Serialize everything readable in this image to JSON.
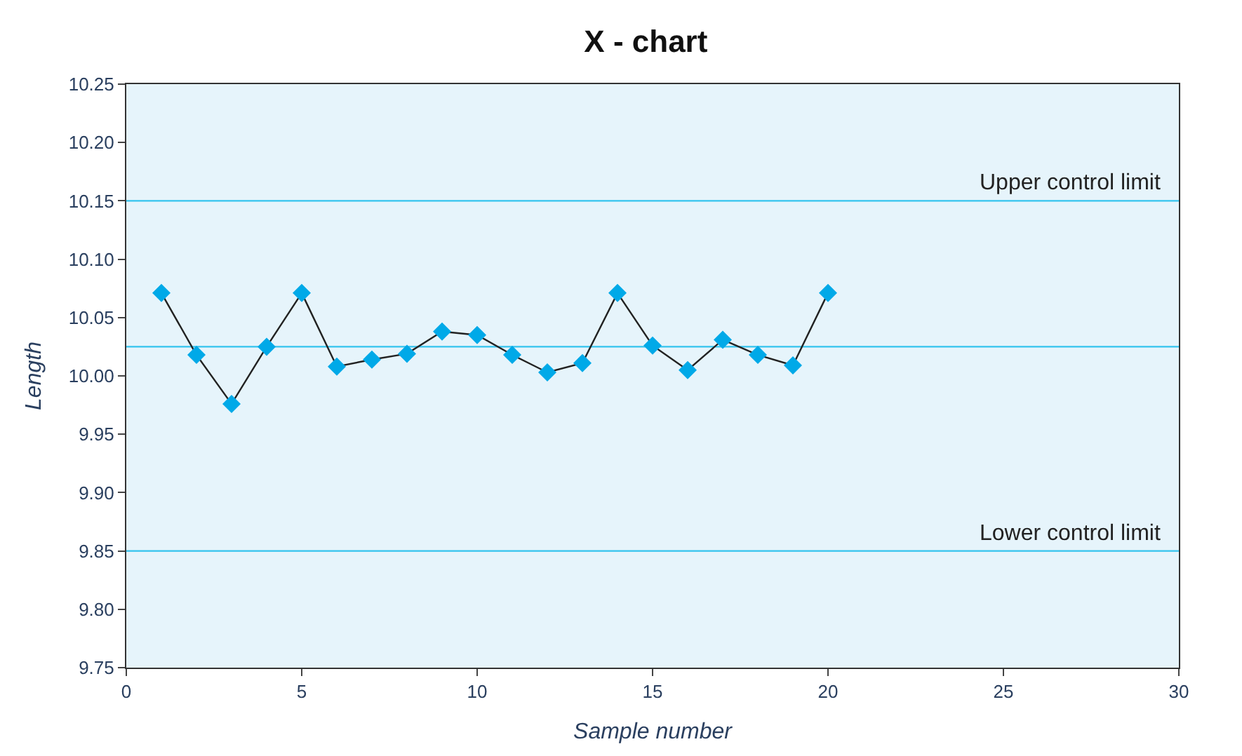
{
  "chart_data": {
    "type": "line",
    "title": "X - chart",
    "xlabel": "Sample number",
    "ylabel": "Length",
    "x": [
      1,
      2,
      3,
      4,
      5,
      6,
      7,
      8,
      9,
      10,
      11,
      12,
      13,
      14,
      15,
      16,
      17,
      18,
      19,
      20
    ],
    "series": [
      {
        "color": "#00a9e8",
        "values": [
          10.071,
          10.018,
          9.976,
          10.025,
          10.071,
          10.008,
          10.014,
          10.019,
          10.038,
          10.035,
          10.018,
          10.003,
          10.011,
          10.071,
          10.026,
          10.005,
          10.031,
          10.018,
          10.009,
          10.071
        ]
      }
    ],
    "marker": "diamond",
    "line_style": "solid",
    "xlim": [
      0,
      30
    ],
    "xticks": [
      0,
      5,
      10,
      15,
      20,
      25,
      30
    ],
    "ylim": [
      9.75,
      10.25
    ],
    "yticks": [
      {
        "value": 9.75,
        "label": "9.75"
      },
      {
        "value": 9.8,
        "label": "9.80"
      },
      {
        "value": 9.85,
        "label": "9.85"
      },
      {
        "value": 9.9,
        "label": "9.90"
      },
      {
        "value": 9.95,
        "label": "9.95"
      },
      {
        "value": 10.0,
        "label": "10.00"
      },
      {
        "value": 10.05,
        "label": "10.05"
      },
      {
        "value": 10.1,
        "label": "10.10"
      },
      {
        "value": 10.15,
        "label": "10.15"
      },
      {
        "value": 10.2,
        "label": "10.20"
      },
      {
        "value": 10.25,
        "label": "10.25"
      }
    ],
    "ref_lines": [
      {
        "axis": "y",
        "value": 10.15,
        "label": "Upper control limit",
        "color": "#33c3ee"
      },
      {
        "axis": "y",
        "value": 10.025,
        "label": null,
        "color": "#33c3ee"
      },
      {
        "axis": "y",
        "value": 9.85,
        "label": "Lower control limit",
        "color": "#33c3ee"
      }
    ],
    "grid": false,
    "legend": false
  }
}
